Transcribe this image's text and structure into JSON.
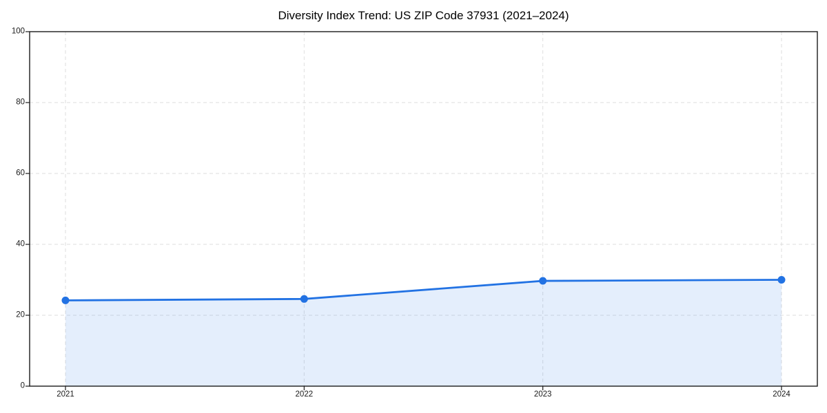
{
  "chart_data": {
    "type": "area",
    "title": "Diversity Index Trend: US ZIP Code 37931 (2021–2024)",
    "categories": [
      "2021",
      "2022",
      "2023",
      "2024"
    ],
    "series": [
      {
        "name": "Diversity Index",
        "values": [
          24.2,
          24.6,
          29.7,
          30.0
        ]
      }
    ],
    "xlabel": "",
    "ylabel": "",
    "ylim": [
      0,
      100
    ],
    "y_ticks": [
      0,
      20,
      40,
      60,
      80,
      100
    ],
    "grid": "dashed both axes",
    "legend_position": "none",
    "marker": "circle",
    "colors": {
      "line": "#2272e3",
      "fill": "#2272e3",
      "grid": "#dedede",
      "axis": "#1a1a1a",
      "tick_text": "#1a1a1a",
      "title_text": "#000000"
    },
    "fill_opacity": 0.12
  }
}
